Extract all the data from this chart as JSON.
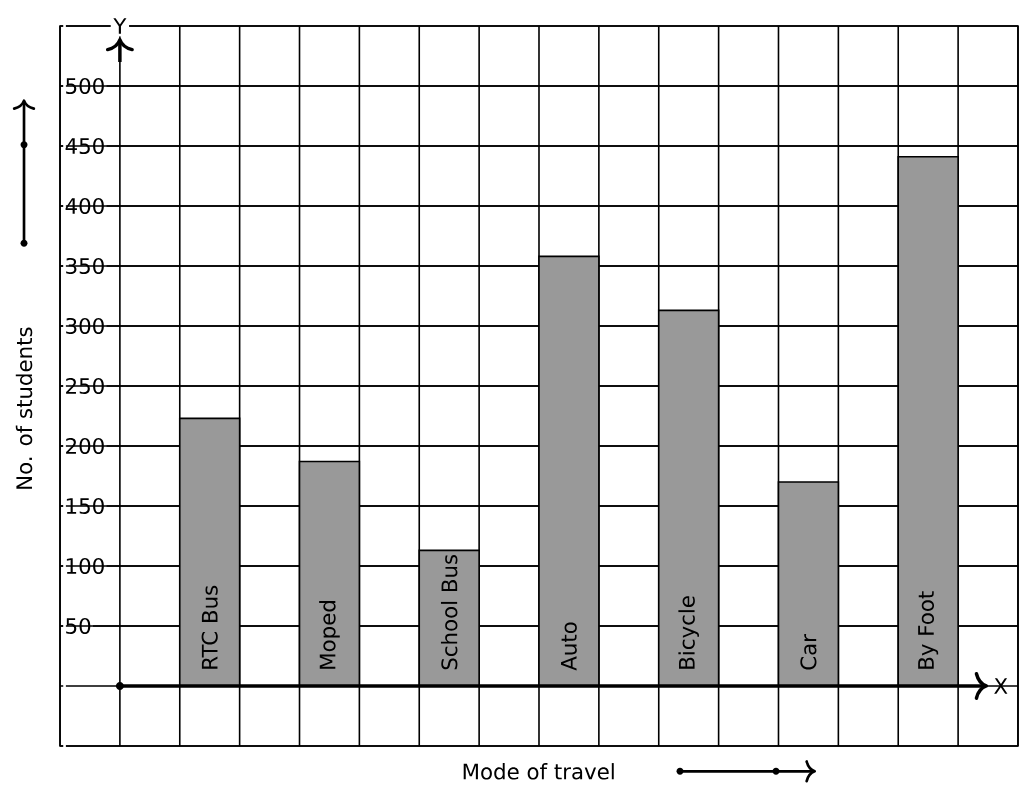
{
  "chart_data": {
    "type": "bar",
    "xlabel": "Mode of travel",
    "ylabel": "No. of students",
    "categories": [
      "RTC Bus",
      "Moped",
      "School Bus",
      "Auto",
      "Bicycle",
      "Car",
      "By Foot"
    ],
    "values": [
      223,
      187,
      113,
      358,
      313,
      170,
      441
    ],
    "color": "#999999",
    "ylim": [
      -50,
      550
    ],
    "yticks": [
      50,
      100,
      150,
      200,
      250,
      300,
      350,
      400,
      450,
      500
    ],
    "grid": true,
    "annotations": [
      "Y",
      "X"
    ]
  }
}
